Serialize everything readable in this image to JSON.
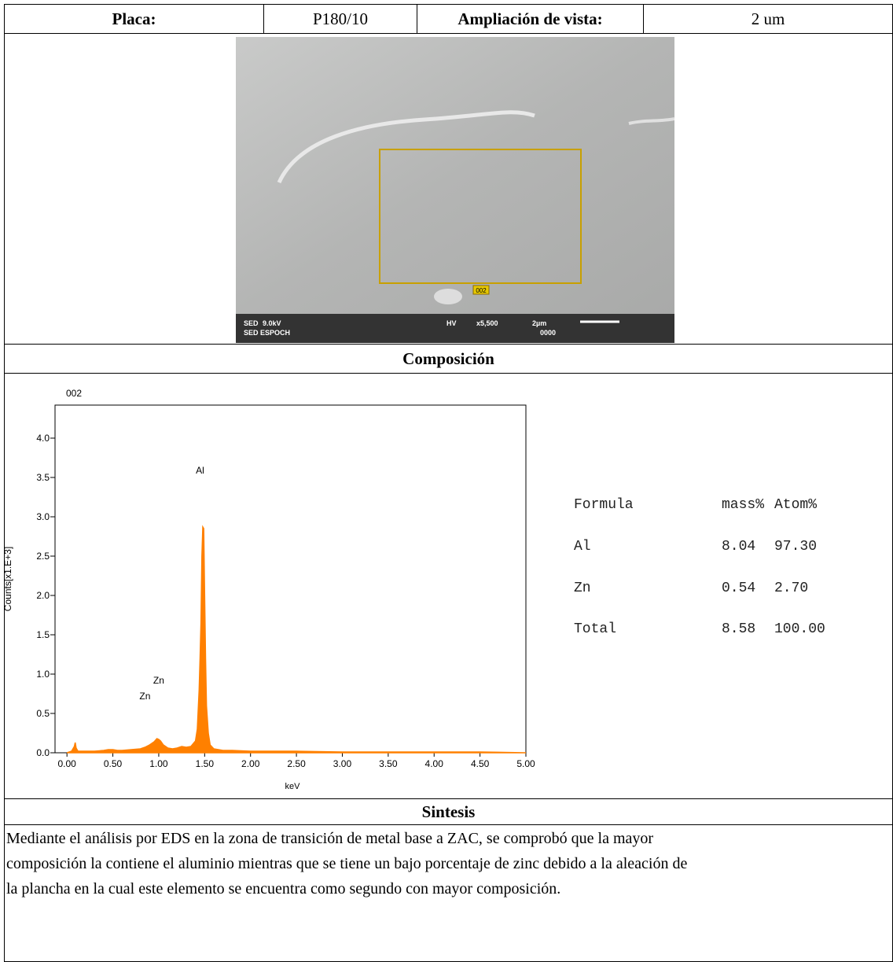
{
  "header": {
    "plate_label": "Placa:",
    "plate_value": "P180/10",
    "zoom_label": "Ampliación de vista:",
    "zoom_value": "2 um"
  },
  "sem_image": {
    "region_label": "002",
    "mode": "SED",
    "voltage": "9.0kV",
    "source": "SED ESPOCH",
    "vacuum": "HV",
    "magnification": "x5,500",
    "scale": "2µm",
    "counter": "0000"
  },
  "composition_title": "Composición",
  "chart_data": {
    "type": "area",
    "title": "002",
    "x_label": "keV",
    "y_label": "Counts[x1.E+3]",
    "color": "#ff8000",
    "x": [
      0.0,
      0.05,
      0.08,
      0.09,
      0.1,
      0.12,
      0.2,
      0.3,
      0.4,
      0.45,
      0.5,
      0.55,
      0.6,
      0.7,
      0.8,
      0.85,
      0.9,
      0.95,
      0.98,
      1.0,
      1.02,
      1.05,
      1.1,
      1.15,
      1.2,
      1.25,
      1.3,
      1.35,
      1.4,
      1.42,
      1.44,
      1.45,
      1.46,
      1.47,
      1.48,
      1.49,
      1.5,
      1.51,
      1.52,
      1.54,
      1.56,
      1.6,
      1.7,
      1.8,
      2.0,
      2.5,
      3.0,
      3.5,
      4.0,
      4.5,
      5.0
    ],
    "values": [
      0,
      0.02,
      0.08,
      0.13,
      0.06,
      0.02,
      0.02,
      0.02,
      0.03,
      0.04,
      0.04,
      0.03,
      0.03,
      0.04,
      0.05,
      0.07,
      0.1,
      0.14,
      0.18,
      0.17,
      0.15,
      0.1,
      0.06,
      0.05,
      0.06,
      0.08,
      0.07,
      0.08,
      0.15,
      0.3,
      0.8,
      1.2,
      1.65,
      2.5,
      2.87,
      2.85,
      2.0,
      1.2,
      0.6,
      0.25,
      0.1,
      0.05,
      0.03,
      0.03,
      0.02,
      0.02,
      0.01,
      0.01,
      0.01,
      0.01,
      0
    ],
    "xlim": [
      -0.13,
      5.0
    ],
    "ylim": [
      0,
      4.42
    ],
    "xticks": [
      {
        "value": 0,
        "label": "0.00"
      },
      {
        "value": 0.5,
        "label": "0.50"
      },
      {
        "value": 1,
        "label": "1.00"
      },
      {
        "value": 1.5,
        "label": "1.50"
      },
      {
        "value": 2,
        "label": "2.00"
      },
      {
        "value": 2.5,
        "label": "2.50"
      },
      {
        "value": 3,
        "label": "3.00"
      },
      {
        "value": 3.5,
        "label": "3.50"
      },
      {
        "value": 4,
        "label": "4.00"
      },
      {
        "value": 4.5,
        "label": "4.50"
      },
      {
        "value": 5,
        "label": "5.00"
      }
    ],
    "yticks": [
      {
        "value": 0,
        "label": "0.0"
      },
      0.5,
      {
        "value": 1,
        "label": "1.0"
      },
      1.5,
      {
        "value": 2,
        "label": "2.0"
      },
      2.5,
      {
        "value": 3,
        "label": "3.0"
      },
      3.5,
      {
        "value": 4,
        "label": "4.0"
      }
    ],
    "annotations": [
      {
        "text": "Al",
        "x": 1.45,
        "y": 3.55
      },
      {
        "text": "Zn",
        "x": 1.0,
        "y": 0.88
      },
      {
        "text": "Zn",
        "x": 0.85,
        "y": 0.68
      }
    ]
  },
  "composition_table": {
    "header": [
      "Formula",
      "mass%",
      "Atom%"
    ],
    "rows": [
      [
        "Al",
        "8.04",
        "97.30"
      ],
      [
        "Zn",
        "0.54",
        "2.70"
      ],
      [
        "Total",
        "8.58",
        "100.00"
      ]
    ]
  },
  "synthesis": {
    "title": "Sintesis",
    "lines": [
      "Mediante el análisis por EDS en la zona de transición de metal base a ZAC, se comprobó que la mayor",
      "composición la contiene el aluminio mientras que se tiene un bajo porcentaje de zinc debido a la aleación de",
      "la plancha en la cual este elemento se encuentra como segundo con mayor composición."
    ]
  }
}
